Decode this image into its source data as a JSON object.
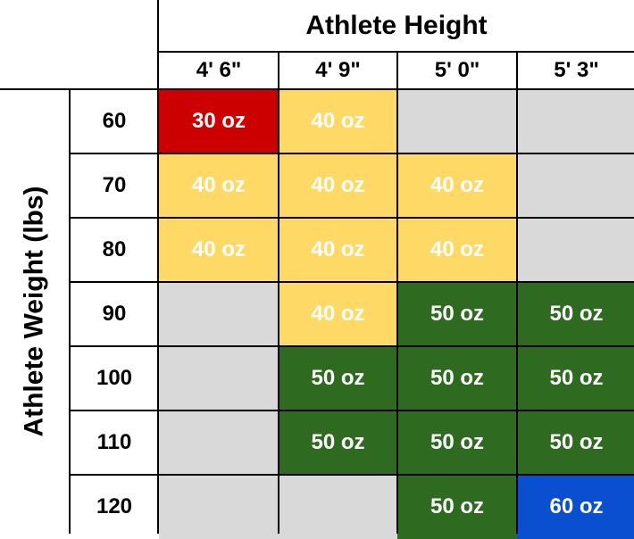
{
  "title": "Athlete Height",
  "y_axis_label": "Athlete Weight (lbs)",
  "heights": [
    "4' 6\"",
    "4' 9\"",
    "5' 0\"",
    "5' 3\""
  ],
  "weights": [
    "60",
    "70",
    "80",
    "90",
    "100",
    "110",
    "120"
  ],
  "colors": {
    "red": "#cc0000",
    "yellow": "#ffd966",
    "green": "#2e6a1f",
    "blue": "#0a4fd0",
    "empty": "#d9d9d9",
    "border": "#000000"
  },
  "grid": [
    [
      {
        "text": "30 oz",
        "color": "red"
      },
      {
        "text": "40 oz",
        "color": "yellow"
      },
      {
        "text": "",
        "color": "empty"
      },
      {
        "text": "",
        "color": "empty"
      }
    ],
    [
      {
        "text": "40 oz",
        "color": "yellow"
      },
      {
        "text": "40 oz",
        "color": "yellow"
      },
      {
        "text": "40 oz",
        "color": "yellow"
      },
      {
        "text": "",
        "color": "empty"
      }
    ],
    [
      {
        "text": "40 oz",
        "color": "yellow"
      },
      {
        "text": "40 oz",
        "color": "yellow"
      },
      {
        "text": "40 oz",
        "color": "yellow"
      },
      {
        "text": "",
        "color": "empty"
      }
    ],
    [
      {
        "text": "",
        "color": "empty"
      },
      {
        "text": "40 oz",
        "color": "yellow"
      },
      {
        "text": "50 oz",
        "color": "green"
      },
      {
        "text": "50 oz",
        "color": "green"
      }
    ],
    [
      {
        "text": "",
        "color": "empty"
      },
      {
        "text": "50 oz",
        "color": "green"
      },
      {
        "text": "50 oz",
        "color": "green"
      },
      {
        "text": "50 oz",
        "color": "green"
      }
    ],
    [
      {
        "text": "",
        "color": "empty"
      },
      {
        "text": "50 oz",
        "color": "green"
      },
      {
        "text": "50 oz",
        "color": "green"
      },
      {
        "text": "50 oz",
        "color": "green"
      }
    ],
    [
      {
        "text": "",
        "color": "empty"
      },
      {
        "text": "",
        "color": "empty"
      },
      {
        "text": "50 oz",
        "color": "green"
      },
      {
        "text": "60 oz",
        "color": "blue"
      }
    ]
  ]
}
